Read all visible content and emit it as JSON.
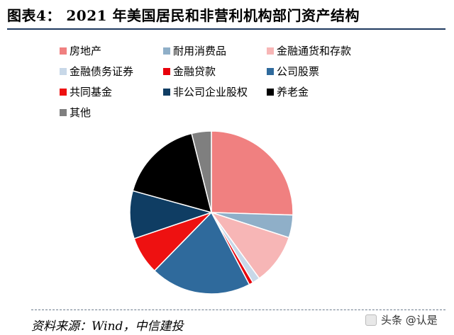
{
  "header": {
    "title": "图表4：  2021 年美国居民和非营利机构部门资产结构"
  },
  "footer": {
    "source": "资料来源：Wind，中信建投",
    "watermark": "头条 @认是"
  },
  "chart_data": {
    "type": "pie",
    "title": "",
    "legend_position": "top",
    "categories": [
      "房地产",
      "耐用消费品",
      "金融通货和存款",
      "金融债务证券",
      "金融贷款",
      "公司股票",
      "共同基金",
      "非公司企业股权",
      "养老金",
      "其他"
    ],
    "values": [
      25.5,
      4.5,
      10.0,
      1.5,
      0.8,
      20.0,
      7.5,
      9.5,
      16.8,
      3.9
    ],
    "unit": "%",
    "colors": [
      "#f08080",
      "#8fafc8",
      "#f7b6b6",
      "#c8d8e8",
      "#e8000b",
      "#2f6a9c",
      "#ee1111",
      "#0f3d63",
      "#000000",
      "#7f7f7f"
    ]
  }
}
